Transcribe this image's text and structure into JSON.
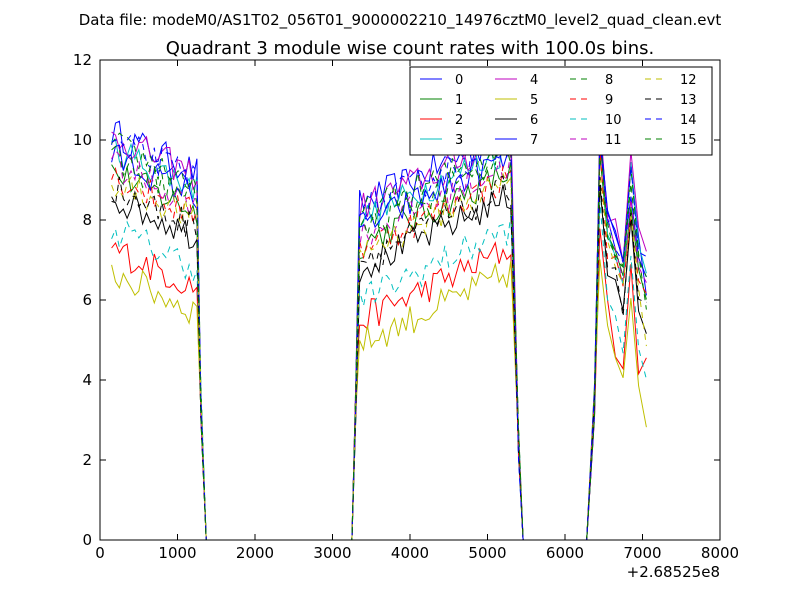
{
  "chart_data": {
    "type": "line",
    "suptitle": "Data file: modeM0/AS1T02_056T01_9000002210_14976cztM0_level2_quad_clean.evt",
    "title": "Quadrant 3 module wise count rates with 100.0s bins.",
    "xlabel": "",
    "ylabel": "",
    "xlim": [
      0,
      8000
    ],
    "ylim": [
      0,
      12
    ],
    "x_offset_label": "+2.68525e8",
    "xticks": [
      "0",
      "1000",
      "2000",
      "3000",
      "4000",
      "5000",
      "6000",
      "7000",
      "8000"
    ],
    "yticks": [
      "0",
      "2",
      "4",
      "6",
      "8",
      "10",
      "12"
    ],
    "grid": false,
    "legend_position": "top-right",
    "series": [
      {
        "name": "0",
        "color": "#0000ff",
        "dash": false,
        "base": 9.0
      },
      {
        "name": "1",
        "color": "#008000",
        "dash": false,
        "base": 8.0
      },
      {
        "name": "2",
        "color": "#ff0000",
        "dash": false,
        "base": 6.1
      },
      {
        "name": "3",
        "color": "#00bfbf",
        "dash": false,
        "base": 8.6
      },
      {
        "name": "4",
        "color": "#bf00bf",
        "dash": false,
        "base": 8.9
      },
      {
        "name": "5",
        "color": "#bfbf00",
        "dash": false,
        "base": 5.5
      },
      {
        "name": "6",
        "color": "#000000",
        "dash": false,
        "base": 7.4
      },
      {
        "name": "7",
        "color": "#0000ff",
        "dash": false,
        "base": 8.4
      },
      {
        "name": "8",
        "color": "#008000",
        "dash": true,
        "base": 8.7
      },
      {
        "name": "9",
        "color": "#ff0000",
        "dash": true,
        "base": 7.9
      },
      {
        "name": "10",
        "color": "#00bfbf",
        "dash": true,
        "base": 6.6
      },
      {
        "name": "11",
        "color": "#bf00bf",
        "dash": true,
        "base": 8.2
      },
      {
        "name": "12",
        "color": "#bfbf00",
        "dash": true,
        "base": 7.8
      },
      {
        "name": "13",
        "color": "#000000",
        "dash": true,
        "base": 7.6
      },
      {
        "name": "14",
        "color": "#0000ff",
        "dash": true,
        "base": 8.8
      },
      {
        "name": "15",
        "color": "#008000",
        "dash": true,
        "base": 8.3
      }
    ],
    "time_segments": [
      {
        "x": [
          150,
          1350
        ],
        "drop_to_zero_at": 1370
      },
      {
        "x": [
          3350,
          5300
        ],
        "drop_to_zero_at": 5460
      },
      {
        "x": [
          6380,
          7050
        ]
      }
    ]
  }
}
